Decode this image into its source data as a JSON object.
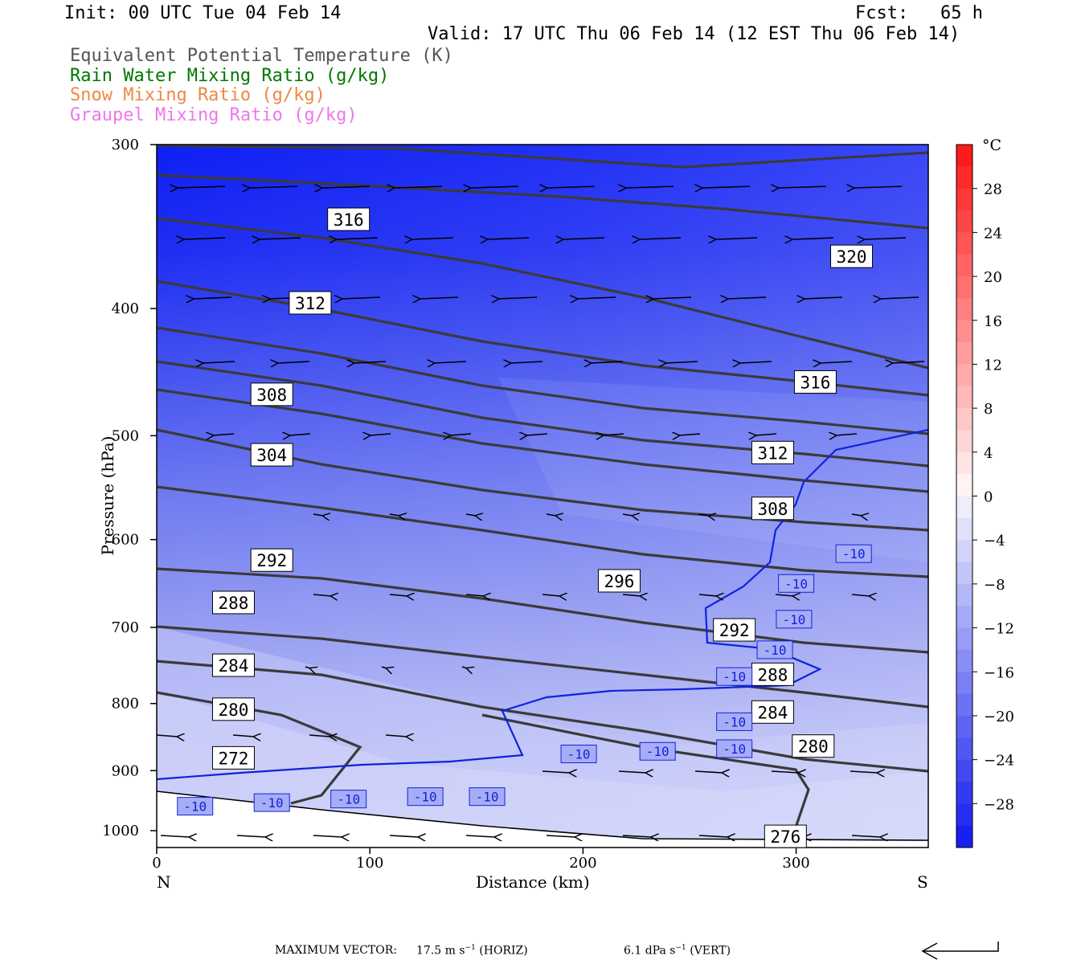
{
  "header": {
    "init": "Init: 00 UTC Tue 04 Feb 14",
    "fcst": "Fcst:   65 h",
    "valid": "Valid: 17 UTC Thu 06 Feb 14 (12 EST Thu 06 Feb 14)"
  },
  "legend": [
    {
      "text": "Equivalent Potential Temperature (K)",
      "color": "#555555"
    },
    {
      "text": "Rain Water Mixing Ratio (g/kg)",
      "color": "#007700"
    },
    {
      "text": "Snow Mixing Ratio (g/kg)",
      "color": "#ee8844"
    },
    {
      "text": "Graupel Mixing Ratio (g/kg)",
      "color": "#ee77ee"
    }
  ],
  "axes": {
    "xlabel": "Distance (km)",
    "ylabel": "Pressure (hPa)",
    "x_ticks": [
      "0",
      "100",
      "200",
      "300"
    ],
    "y_ticks": [
      "300",
      "400",
      "500",
      "600",
      "700",
      "800",
      "900",
      "1000"
    ],
    "x_left_end": "N",
    "x_right_end": "S"
  },
  "colorbar": {
    "unit": "°C",
    "labels": [
      "28",
      "24",
      "20",
      "16",
      "12",
      "8",
      "4",
      "0",
      "-4",
      "-8",
      "-12",
      "-16",
      "-20",
      "-24",
      "-28"
    ]
  },
  "footer": {
    "prefix": "MAXIMUM VECTOR:",
    "horiz_value": "17.5 m s",
    "horiz_unit": "(HORIZ)",
    "vert_value": "6.1 dPa s",
    "vert_unit": "(VERT)",
    "exponent": "−1"
  },
  "chart_data": {
    "type": "contour",
    "x_range_km": [
      0,
      362
    ],
    "y_range_hPa": [
      300,
      1030
    ],
    "y_scale": "log-pressure",
    "theta_e_labels": [
      {
        "value": "316",
        "x": 90,
        "p": 342
      },
      {
        "value": "312",
        "x": 72,
        "p": 396
      },
      {
        "value": "308",
        "x": 54,
        "p": 465
      },
      {
        "value": "304",
        "x": 54,
        "p": 517
      },
      {
        "value": "292",
        "x": 54,
        "p": 622
      },
      {
        "value": "288",
        "x": 36,
        "p": 670
      },
      {
        "value": "284",
        "x": 36,
        "p": 748
      },
      {
        "value": "280",
        "x": 36,
        "p": 808
      },
      {
        "value": "272",
        "x": 36,
        "p": 880
      },
      {
        "value": "320",
        "x": 326,
        "p": 365
      },
      {
        "value": "316",
        "x": 309,
        "p": 455
      },
      {
        "value": "312",
        "x": 289,
        "p": 515
      },
      {
        "value": "308",
        "x": 289,
        "p": 568
      },
      {
        "value": "296",
        "x": 217,
        "p": 645
      },
      {
        "value": "292",
        "x": 271,
        "p": 703
      },
      {
        "value": "288",
        "x": 289,
        "p": 760
      },
      {
        "value": "284",
        "x": 289,
        "p": 812
      },
      {
        "value": "280",
        "x": 308,
        "p": 862
      },
      {
        "value": "276",
        "x": 295,
        "p": 1010
      }
    ],
    "isotherm_labels": [
      {
        "value": "-10",
        "x": 18,
        "p": 958
      },
      {
        "value": "-10",
        "x": 54,
        "p": 952
      },
      {
        "value": "-10",
        "x": 90,
        "p": 946
      },
      {
        "value": "-10",
        "x": 126,
        "p": 942
      },
      {
        "value": "-10",
        "x": 155,
        "p": 942
      },
      {
        "value": "-10",
        "x": 198,
        "p": 874
      },
      {
        "value": "-10",
        "x": 235,
        "p": 870
      },
      {
        "value": "-10",
        "x": 271,
        "p": 866
      },
      {
        "value": "-10",
        "x": 271,
        "p": 826
      },
      {
        "value": "-10",
        "x": 271,
        "p": 763
      },
      {
        "value": "-10",
        "x": 290,
        "p": 728
      },
      {
        "value": "-10",
        "x": 299,
        "p": 690
      },
      {
        "value": "-10",
        "x": 300,
        "p": 648
      },
      {
        "value": "-10",
        "x": 327,
        "p": 615
      }
    ],
    "max_vector_horiz": 17.5,
    "max_vector_vert": 6.1
  }
}
